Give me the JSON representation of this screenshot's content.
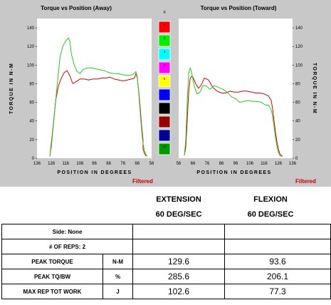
{
  "colors": {
    "red": "#dd0000",
    "green": "#22cc22",
    "bg": "#c8c8c8",
    "plot": "#ffffff"
  },
  "chart_data": [
    {
      "type": "line",
      "title": "Torque vs Position (Away)",
      "xlabel": "POSITION IN DEGREES",
      "ylabel": "TORQUE IN N-M",
      "yticks": [
        0,
        20,
        40,
        60,
        80,
        100,
        120,
        140
      ],
      "xtick_labels": [
        "136",
        "126",
        "116",
        "106",
        "96",
        "86",
        "76",
        "66",
        "56"
      ],
      "ylim": [
        0,
        150
      ],
      "xlim": [
        136,
        56
      ],
      "annotation": "Filtered",
      "series": [
        {
          "color": "red",
          "x": [
            127,
            125,
            123,
            121,
            119,
            117,
            115,
            113,
            111,
            109,
            106,
            103,
            100,
            97,
            94,
            91,
            88,
            85,
            82,
            79,
            76,
            73,
            70,
            68,
            67,
            66,
            65,
            64,
            63,
            62,
            62,
            61,
            60,
            60
          ],
          "y": [
            2,
            30,
            62,
            78,
            86,
            92,
            94,
            88,
            80,
            82,
            85,
            85,
            84,
            85,
            85,
            86,
            86,
            87,
            85,
            84,
            83,
            84,
            85,
            86,
            91,
            86,
            72,
            55,
            35,
            20,
            10,
            5,
            3,
            2
          ]
        },
        {
          "color": "green",
          "x": [
            127,
            126,
            124,
            122,
            120,
            118,
            116,
            114,
            113,
            112,
            110,
            108,
            106,
            104,
            101,
            98,
            95,
            92,
            89,
            86,
            83,
            80,
            77,
            74,
            71,
            69,
            67,
            66,
            65,
            64,
            63,
            62,
            61,
            60,
            59
          ],
          "y": [
            2,
            12,
            45,
            78,
            108,
            120,
            126,
            129,
            125,
            112,
            100,
            93,
            91,
            95,
            97,
            97,
            96,
            95,
            94,
            92,
            91,
            91,
            90,
            89,
            89,
            90,
            93,
            87,
            70,
            50,
            30,
            16,
            8,
            4,
            2
          ]
        }
      ]
    },
    {
      "type": "line",
      "title": "Torque vs Position (Toward)",
      "xlabel": "POSITION IN DEGREES",
      "ylabel": "TORQUE IN N-M",
      "yticks": [
        0,
        20,
        40,
        60,
        80,
        100,
        120,
        140
      ],
      "xtick_labels": [
        "56",
        "66",
        "76",
        "86",
        "96",
        "106",
        "116",
        "126",
        "136"
      ],
      "ylim": [
        0,
        150
      ],
      "xlim": [
        56,
        136
      ],
      "annotation": "Filtered",
      "series": [
        {
          "color": "red",
          "x": [
            60,
            61,
            62,
            63,
            64,
            65,
            66,
            68,
            70,
            72,
            74,
            77,
            80,
            83,
            86,
            89,
            92,
            95,
            98,
            101,
            104,
            107,
            110,
            113,
            116,
            119,
            121,
            122,
            123,
            124,
            125,
            126,
            127,
            128,
            129
          ],
          "y": [
            3,
            12,
            40,
            70,
            85,
            88,
            87,
            80,
            75,
            79,
            86,
            84,
            76,
            72,
            70,
            70,
            72,
            71,
            71,
            72,
            72,
            71,
            70,
            70,
            69,
            67,
            62,
            53,
            40,
            28,
            18,
            10,
            5,
            3,
            2
          ]
        },
        {
          "color": "green",
          "x": [
            60,
            61,
            62,
            63,
            64,
            65,
            66,
            67,
            69,
            71,
            73,
            75,
            78,
            81,
            84,
            87,
            90,
            93,
            96,
            99,
            102,
            105,
            108,
            111,
            114,
            117,
            119,
            121,
            122,
            123,
            124,
            125,
            126,
            127,
            128
          ],
          "y": [
            3,
            20,
            60,
            90,
            97,
            93,
            85,
            77,
            69,
            71,
            78,
            78,
            74,
            78,
            76,
            74,
            71,
            66,
            64,
            60,
            61,
            62,
            61,
            61,
            60,
            57,
            57,
            52,
            45,
            34,
            22,
            13,
            7,
            3,
            2
          ]
        }
      ]
    }
  ],
  "swatches": [
    {
      "num": "1",
      "color": "#ff0000"
    },
    {
      "num": "2",
      "color": "#00ee00"
    },
    {
      "num": "3",
      "color": "#00ffff"
    },
    {
      "num": "4",
      "color": "#ff00ff"
    },
    {
      "num": "5",
      "color": "#ffff00"
    },
    {
      "num": "6",
      "color": "#0000ff"
    },
    {
      "num": "7",
      "color": "#000000"
    },
    {
      "num": "8",
      "color": "#990000"
    },
    {
      "num": "9",
      "color": "#000099"
    },
    {
      "num": "10",
      "color": "#009900"
    }
  ],
  "swatch_header": "#",
  "table": {
    "col1_header": "EXTENSION",
    "col1_sub": "60 DEG/SEC",
    "col2_header": "FLEXION",
    "col2_sub": "60 DEG/SEC",
    "side": "Side: None",
    "reps": "# OF REPS: 2",
    "rows": [
      {
        "label": "PEAK TORQUE",
        "unit": "N-M",
        "ext": "129.6",
        "flex": "93.6"
      },
      {
        "label": "PEAK TQ/BW",
        "unit": "%",
        "ext": "285.6",
        "flex": "206.1"
      },
      {
        "label": "MAX REP TOT WORK",
        "unit": "J",
        "ext": "102.6",
        "flex": "77.3"
      }
    ]
  }
}
